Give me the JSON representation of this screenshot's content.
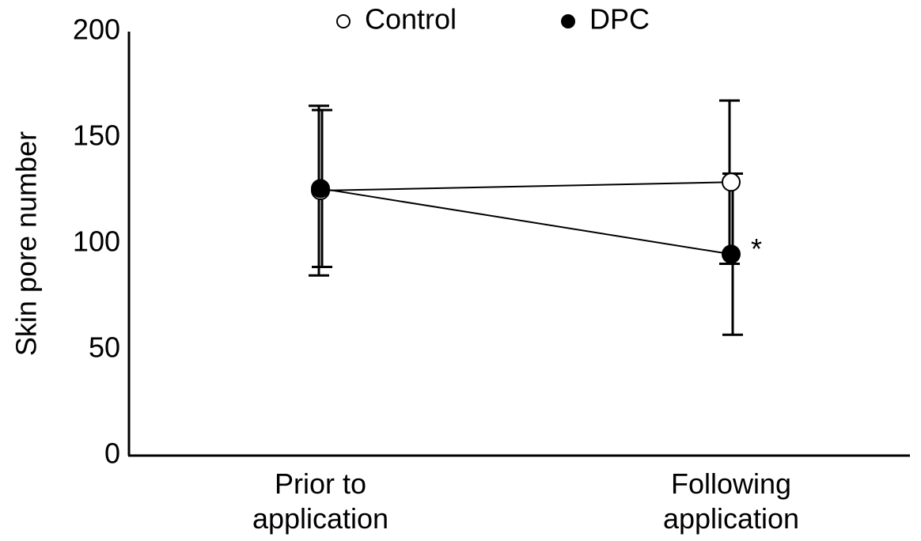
{
  "chart_data": {
    "type": "line",
    "y_label": "Skin pore number",
    "categories": [
      "Prior to\napplication",
      "Following\napplication"
    ],
    "series": [
      {
        "name": "Control",
        "color": "#ffffff",
        "values": [
          125,
          129
        ],
        "errors": [
          40,
          38.5
        ]
      },
      {
        "name": "DPC",
        "color": "#000000",
        "values": [
          126,
          95
        ],
        "errors": [
          37,
          38
        ]
      }
    ],
    "annotation": "*",
    "ylim": [
      0,
      200
    ],
    "yticks": [
      0,
      50,
      100,
      150,
      200
    ],
    "grid": false,
    "legend": "top"
  }
}
